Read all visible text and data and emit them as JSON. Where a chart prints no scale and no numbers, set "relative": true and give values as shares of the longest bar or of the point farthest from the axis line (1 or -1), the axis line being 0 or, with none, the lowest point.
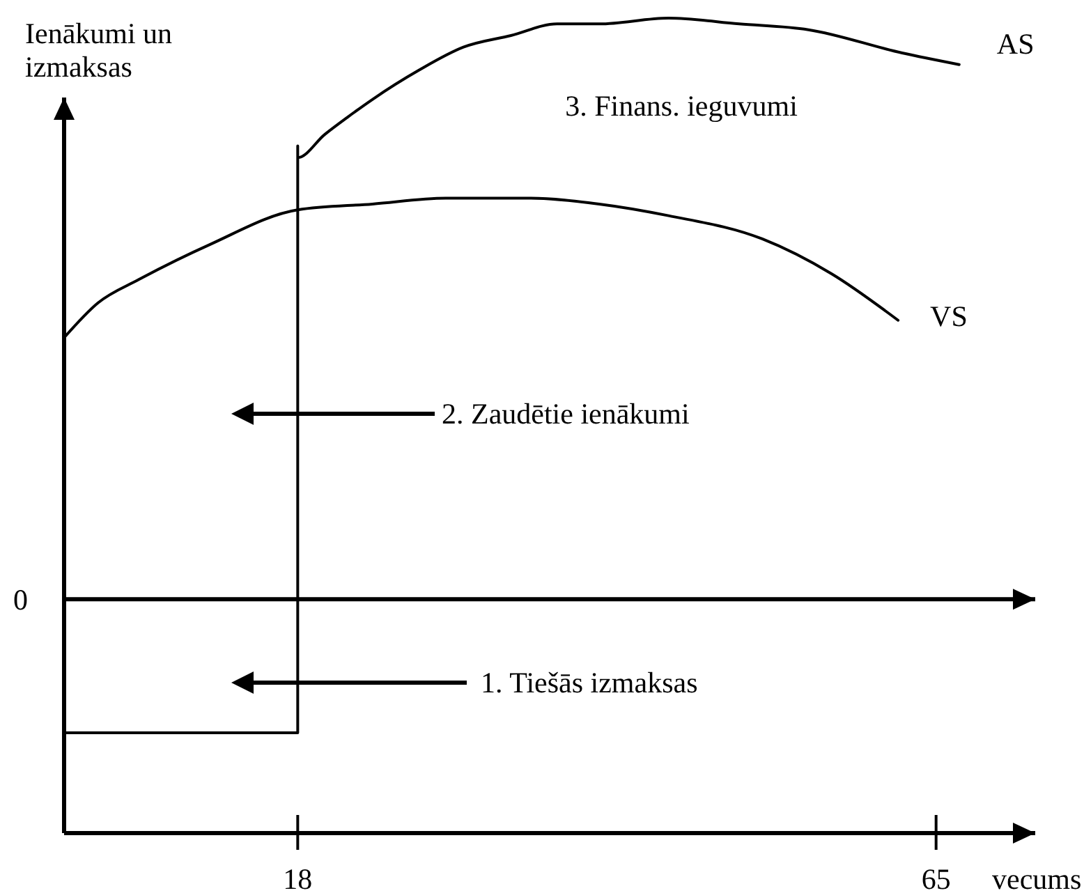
{
  "chart_data": {
    "type": "line",
    "xlabel": "vecums",
    "ylabel": "Ienākumi un izmaksas",
    "relative": true,
    "xlim": [
      0.8,
      72.3
    ],
    "xticks": [
      18,
      65
    ],
    "series": [
      {
        "name": "AS",
        "color": "#000000",
        "x": [
          0.8,
          18,
          18,
          18,
          20,
          21.7,
          23.5,
          26.9,
          30.2,
          33.7,
          37.1,
          40.2,
          45.3,
          50.5,
          55.6,
          62.5,
          66.7
        ],
        "values": [
          -0.23,
          -0.23,
          0.78,
          0.76,
          0.8,
          0.83,
          0.86,
          0.91,
          0.95,
          0.97,
          0.99,
          0.99,
          1,
          0.99,
          0.98,
          0.94,
          0.92
        ]
      },
      {
        "name": "VS",
        "color": "#000000",
        "x": [
          0.8,
          3.3,
          6.3,
          11.5,
          18,
          23.5,
          28.9,
          35.1,
          40.2,
          45.3,
          52.2,
          57.3,
          62.2
        ],
        "values": [
          0.45,
          0.51,
          0.55,
          0.61,
          0.67,
          0.68,
          0.69,
          0.69,
          0.68,
          0.66,
          0.62,
          0.56,
          0.48
        ]
      }
    ],
    "ref_lines": [
      {
        "axis": "y",
        "value": 0,
        "label": "0",
        "color": "#000000"
      }
    ],
    "annotations": [
      "1. Tiešās izmaksas",
      "2. Zaudētie ienākumi",
      "3. Finans. ieguvumi"
    ]
  }
}
